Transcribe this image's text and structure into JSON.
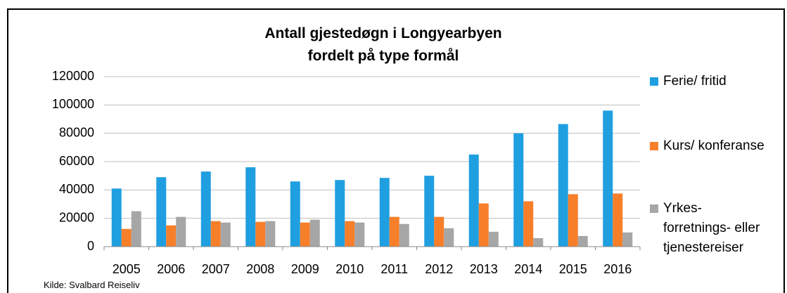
{
  "chart_data": {
    "type": "bar",
    "title": "Antall gjestedøgn i Longyearbyen\nfordelt på type formål",
    "source": "Kilde: Svalbard Reiseliv",
    "categories": [
      "2005",
      "2006",
      "2007",
      "2008",
      "2009",
      "2010",
      "2011",
      "2012",
      "2013",
      "2014",
      "2015",
      "2016"
    ],
    "series": [
      {
        "name": "Ferie/ fritid",
        "color": "#1f9fe0",
        "values": [
          41000,
          49000,
          53000,
          56000,
          46000,
          47000,
          48500,
          50000,
          65000,
          80000,
          86500,
          96000
        ]
      },
      {
        "name": "Kurs/ konferanse",
        "color": "#f77f2a",
        "values": [
          12500,
          15000,
          18000,
          17500,
          17000,
          18000,
          21000,
          21000,
          30500,
          32000,
          37000,
          37500
        ]
      },
      {
        "name": "Yrkes-\nforretnings- eller\ntjenestereiser",
        "color": "#a6a6a6",
        "values": [
          25000,
          21000,
          17000,
          18000,
          19000,
          17000,
          16000,
          13000,
          10500,
          6000,
          7500,
          10000
        ]
      }
    ],
    "ylim": [
      0,
      120000
    ],
    "yticks": [
      0,
      20000,
      40000,
      60000,
      80000,
      100000,
      120000
    ],
    "grid": true,
    "legend": "right"
  }
}
